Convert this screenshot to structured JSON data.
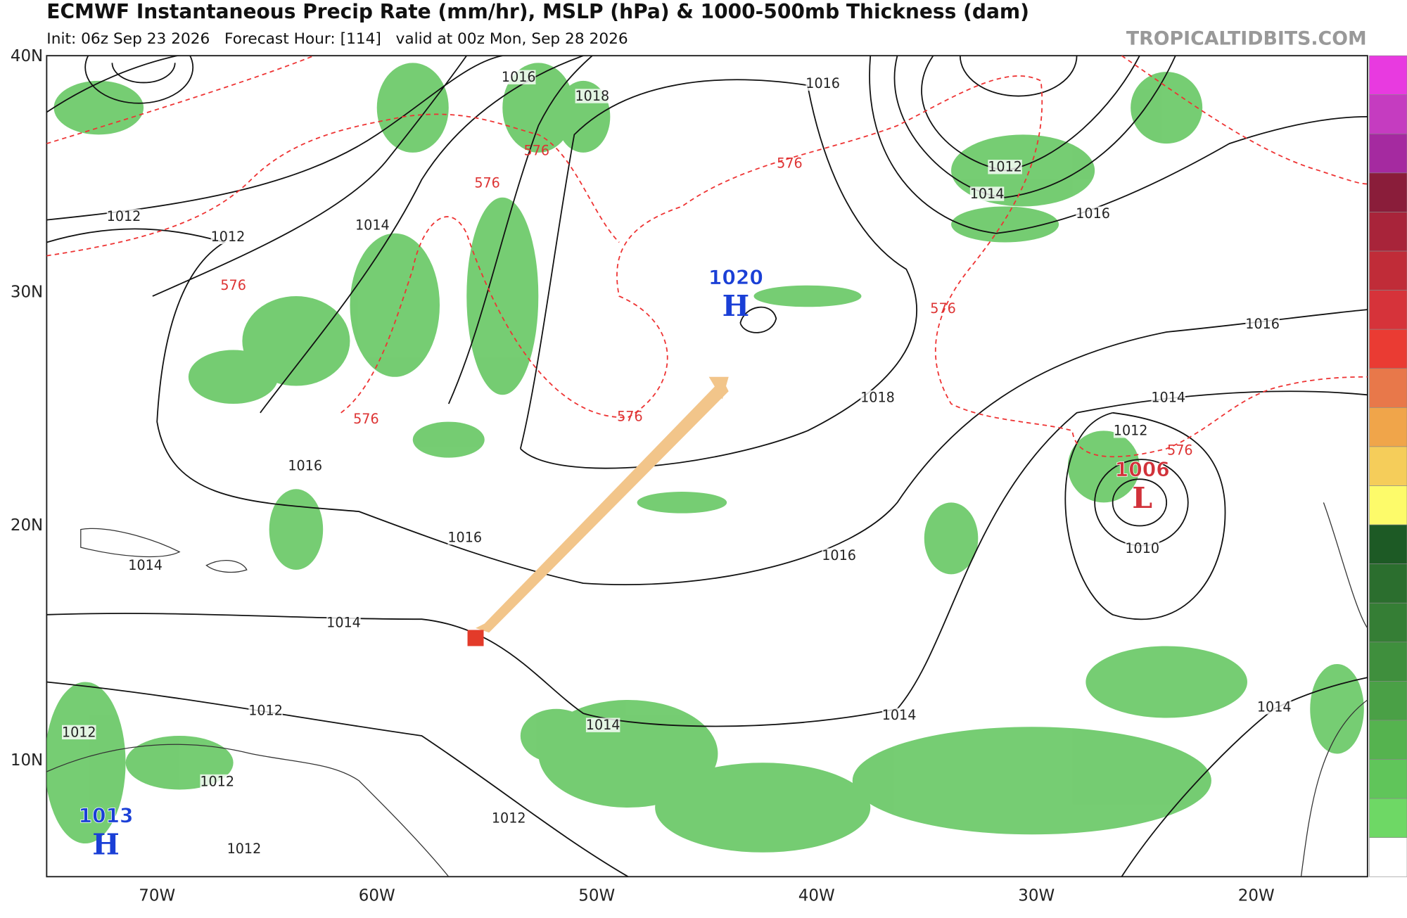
{
  "header": {
    "title": "ECMWF Instantaneous Precip Rate (mm/hr), MSLP (hPa) & 1000-500mb Thickness (dam)",
    "subtitle": "Init: 06z Sep 23 2026   Forecast Hour: [114]   valid at 00z Mon, Sep 28 2026",
    "watermark": "TROPICALTIDBITS.COM"
  },
  "map": {
    "lat_labels": [
      "40N",
      "30N",
      "20N",
      "10N"
    ],
    "lon_labels": [
      "70W",
      "60W",
      "50W",
      "40W",
      "30W",
      "20W"
    ],
    "isobar_labels": [
      "1016",
      "1018",
      "1016",
      "1012",
      "1012",
      "1014",
      "1012",
      "1014",
      "1016",
      "1016",
      "1018",
      "1014",
      "1012",
      "1016",
      "1016",
      "1016",
      "1014",
      "1014",
      "1012",
      "1014",
      "1014",
      "1014",
      "1012",
      "1012",
      "1012",
      "1012",
      "1010"
    ],
    "thickness_labels": [
      "576",
      "576",
      "576",
      "576",
      "576",
      "576",
      "576",
      "576"
    ],
    "centers": [
      {
        "symbol": "H",
        "pressure": "1020"
      },
      {
        "symbol": "L",
        "pressure": "1006"
      },
      {
        "symbol": "H",
        "pressure": "1013"
      }
    ]
  }
}
